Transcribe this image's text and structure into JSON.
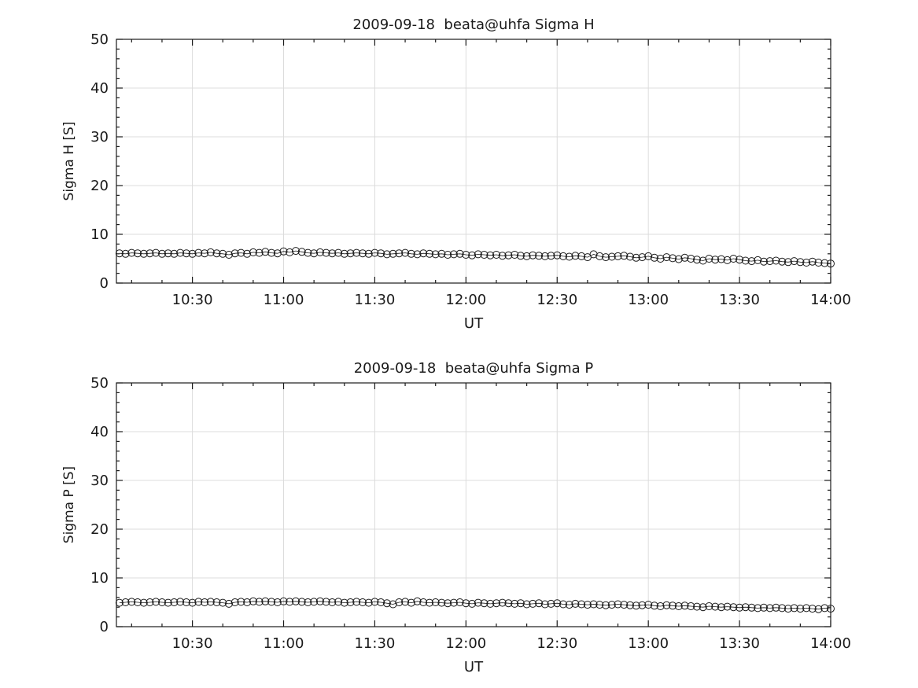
{
  "figure": {
    "background": "#ffffff",
    "axes_color": "#1a1a1a",
    "grid_color": "#dcdcdc",
    "marker_color": "#1a1a1a"
  },
  "chart_data": [
    {
      "type": "line",
      "title": "2009-09-18  beata@uhfa Sigma H",
      "xlabel": "UT",
      "ylabel": "Sigma H [S]",
      "ylim": [
        0,
        50
      ],
      "yticks": [
        0,
        10,
        20,
        30,
        40,
        50
      ],
      "y_minor_step": 2,
      "x_minutes_range": [
        605,
        840
      ],
      "xticks_minutes": [
        630,
        660,
        690,
        720,
        750,
        780,
        810,
        840
      ],
      "xtick_labels": [
        "10:30",
        "11:00",
        "11:30",
        "12:00",
        "12:30",
        "13:00",
        "13:30",
        "14:00"
      ],
      "x_minor_step_minutes": 10,
      "grid": true,
      "legend": null,
      "marker": "circle",
      "x_start_minute": 606,
      "x_step_minutes": 2,
      "values": [
        6.1,
        6.0,
        6.2,
        6.1,
        6.0,
        6.1,
        6.2,
        6.0,
        6.1,
        6.0,
        6.2,
        6.1,
        6.0,
        6.2,
        6.1,
        6.3,
        6.1,
        6.0,
        5.8,
        6.1,
        6.2,
        6.0,
        6.3,
        6.2,
        6.4,
        6.2,
        6.1,
        6.5,
        6.3,
        6.6,
        6.4,
        6.2,
        6.1,
        6.3,
        6.2,
        6.1,
        6.2,
        6.0,
        6.1,
        6.2,
        6.1,
        6.0,
        6.2,
        6.1,
        5.9,
        6.0,
        6.1,
        6.2,
        6.0,
        5.9,
        6.1,
        6.0,
        5.9,
        6.0,
        5.8,
        5.9,
        6.0,
        5.8,
        5.7,
        5.9,
        5.8,
        5.7,
        5.8,
        5.6,
        5.7,
        5.8,
        5.6,
        5.5,
        5.7,
        5.6,
        5.5,
        5.6,
        5.7,
        5.5,
        5.4,
        5.6,
        5.5,
        5.3,
        5.9,
        5.5,
        5.3,
        5.4,
        5.5,
        5.6,
        5.4,
        5.2,
        5.3,
        5.5,
        5.2,
        5.0,
        5.3,
        5.1,
        4.9,
        5.2,
        5.0,
        4.8,
        4.6,
        5.0,
        4.8,
        4.9,
        4.7,
        5.0,
        4.8,
        4.6,
        4.5,
        4.7,
        4.4,
        4.5,
        4.6,
        4.4,
        4.3,
        4.5,
        4.3,
        4.2,
        4.4,
        4.2,
        4.1,
        4.0
      ]
    },
    {
      "type": "line",
      "title": "2009-09-18  beata@uhfa Sigma P",
      "xlabel": "UT",
      "ylabel": "Sigma P [S]",
      "ylim": [
        0,
        50
      ],
      "yticks": [
        0,
        10,
        20,
        30,
        40,
        50
      ],
      "y_minor_step": 2,
      "x_minutes_range": [
        605,
        840
      ],
      "xticks_minutes": [
        630,
        660,
        690,
        720,
        750,
        780,
        810,
        840
      ],
      "xtick_labels": [
        "10:30",
        "11:00",
        "11:30",
        "12:00",
        "12:30",
        "13:00",
        "13:30",
        "14:00"
      ],
      "x_minor_step_minutes": 10,
      "grid": true,
      "legend": null,
      "marker": "circle",
      "x_start_minute": 606,
      "x_step_minutes": 2,
      "values": [
        4.9,
        5.0,
        5.1,
        5.0,
        4.9,
        5.0,
        5.1,
        5.0,
        4.9,
        5.0,
        5.1,
        5.0,
        4.9,
        5.1,
        5.0,
        5.1,
        5.0,
        4.9,
        4.7,
        5.0,
        5.1,
        5.0,
        5.2,
        5.1,
        5.2,
        5.1,
        5.0,
        5.2,
        5.1,
        5.2,
        5.1,
        5.0,
        5.1,
        5.2,
        5.1,
        5.0,
        5.1,
        4.9,
        5.0,
        5.1,
        5.0,
        4.9,
        5.1,
        5.0,
        4.8,
        4.6,
        5.0,
        5.1,
        4.9,
        5.2,
        5.0,
        4.9,
        5.0,
        4.9,
        4.8,
        4.9,
        5.0,
        4.8,
        4.7,
        4.9,
        4.8,
        4.7,
        4.8,
        4.9,
        4.8,
        4.7,
        4.8,
        4.6,
        4.7,
        4.8,
        4.6,
        4.7,
        4.8,
        4.6,
        4.5,
        4.7,
        4.6,
        4.5,
        4.6,
        4.5,
        4.4,
        4.5,
        4.6,
        4.5,
        4.4,
        4.3,
        4.4,
        4.5,
        4.3,
        4.2,
        4.4,
        4.3,
        4.2,
        4.3,
        4.2,
        4.1,
        4.0,
        4.2,
        4.1,
        4.0,
        4.1,
        4.0,
        3.9,
        4.0,
        3.9,
        3.8,
        3.9,
        3.8,
        3.9,
        3.8,
        3.7,
        3.8,
        3.7,
        3.8,
        3.7,
        3.6,
        3.8,
        3.7
      ]
    }
  ]
}
